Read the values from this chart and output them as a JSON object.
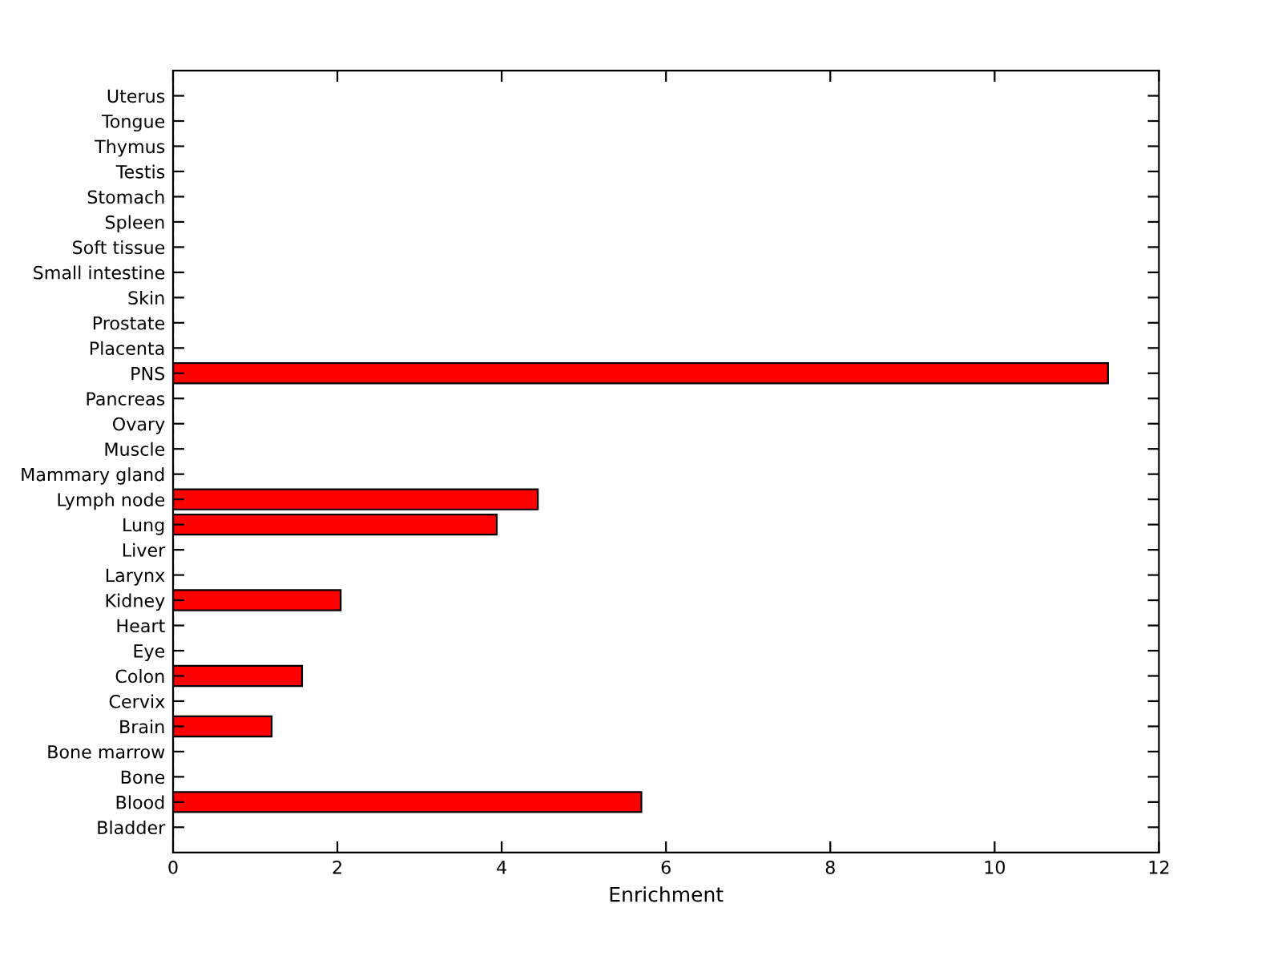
{
  "chart_data": {
    "type": "bar",
    "orientation": "horizontal",
    "xlabel": "Enrichment",
    "categories": [
      "Uterus",
      "Tongue",
      "Thymus",
      "Testis",
      "Stomach",
      "Spleen",
      "Soft tissue",
      "Small intestine",
      "Skin",
      "Prostate",
      "Placenta",
      "PNS",
      "Pancreas",
      "Ovary",
      "Muscle",
      "Mammary gland",
      "Lymph node",
      "Lung",
      "Liver",
      "Larynx",
      "Kidney",
      "Heart",
      "Eye",
      "Colon",
      "Cervix",
      "Brain",
      "Bone marrow",
      "Bone",
      "Blood",
      "Bladder"
    ],
    "values": [
      0,
      0,
      0,
      0,
      0,
      0,
      0,
      0,
      0,
      0,
      0,
      11.38,
      0,
      0,
      0,
      0,
      4.44,
      3.94,
      0,
      0,
      2.04,
      0,
      0,
      1.57,
      0,
      1.2,
      0,
      0,
      5.7,
      0
    ],
    "color": "#ff0000",
    "xlim": [
      0,
      12
    ],
    "xticks": [
      0,
      2,
      4,
      6,
      8,
      10,
      12
    ],
    "grid": false
  }
}
